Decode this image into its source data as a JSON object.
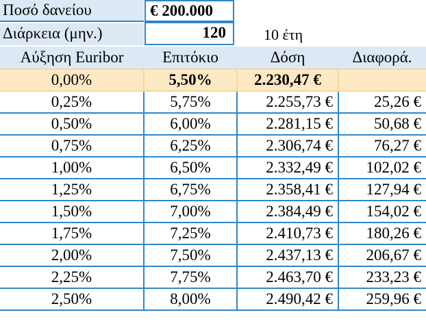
{
  "loan": {
    "amount_label": "Ποσό δανείου",
    "amount_value": "€ 200.000",
    "duration_label": "Διάρκεια (μην.)",
    "duration_value": "120",
    "duration_note": "10 έτη"
  },
  "columns": [
    "Αύξηση Euribor",
    "Επιτόκιο",
    "Δόση",
    "Διαφορά."
  ],
  "rows": [
    [
      "0,00%",
      "5,50%",
      "2.230,47 €",
      ""
    ],
    [
      "0,25%",
      "5,75%",
      "2.255,73 €",
      "25,26 €"
    ],
    [
      "0,50%",
      "6,00%",
      "2.281,15 €",
      "50,68 €"
    ],
    [
      "0,75%",
      "6,25%",
      "2.306,74 €",
      "76,27 €"
    ],
    [
      "1,00%",
      "6,50%",
      "2.332,49 €",
      "102,02 €"
    ],
    [
      "1,25%",
      "6,75%",
      "2.358,41 €",
      "127,94 €"
    ],
    [
      "1,50%",
      "7,00%",
      "2.384,49 €",
      "154,02 €"
    ],
    [
      "1,75%",
      "7,25%",
      "2.410,73 €",
      "180,26 €"
    ],
    [
      "2,00%",
      "7,50%",
      "2.437,13 €",
      "206,67 €"
    ],
    [
      "2,25%",
      "7,75%",
      "2.463,70 €",
      "233,23 €"
    ],
    [
      "2,50%",
      "8,00%",
      "2.490,42 €",
      "259,96 €"
    ]
  ],
  "colors": {
    "border": "#2f86c9",
    "label_fill": "#dce8f4",
    "base_row_fill": "#fde9c3"
  }
}
